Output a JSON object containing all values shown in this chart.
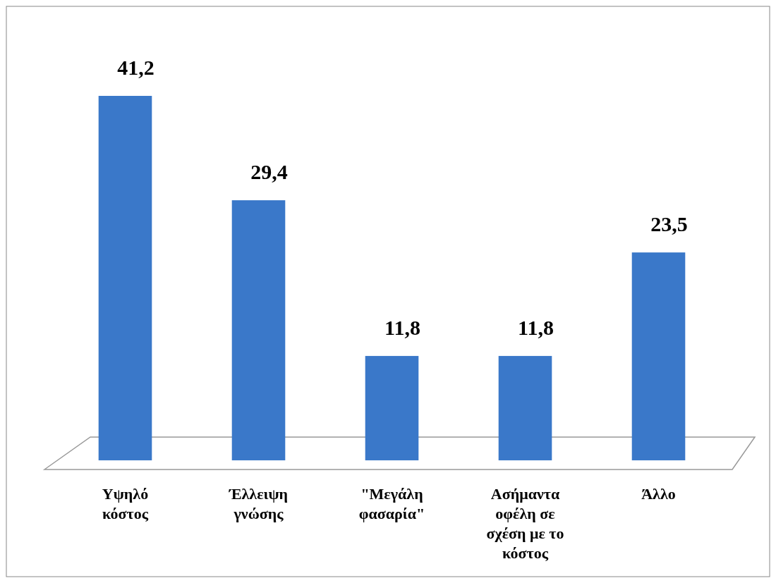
{
  "chart_data": {
    "type": "bar",
    "categories": [
      "Υψηλό κόστος",
      "Έλλειψη γνώσης",
      "\"Μεγάλη φασαρία\"",
      "Ασήμαντα οφέλη σε σχέση με το κόστος",
      "Άλλο"
    ],
    "values": [
      41.2,
      29.4,
      11.8,
      11.8,
      23.5
    ],
    "value_labels": [
      "41,2",
      "29,4",
      "11,8",
      "11,8",
      "23,5"
    ],
    "color": "#3a78c9"
  }
}
